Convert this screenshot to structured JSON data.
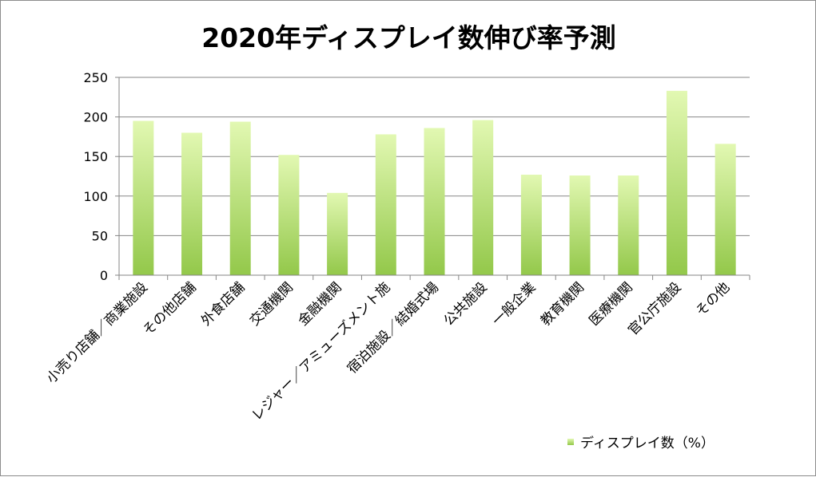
{
  "chart_data": {
    "type": "bar",
    "title": "2020年ディスプレイ数伸び率予測",
    "categories": [
      "小売り店舗／商業施設",
      "その他店舗",
      "外食店舗",
      "交通機関",
      "金融機関",
      "レジャー／アミューズメント施",
      "宿泊施設／結婚式場",
      "公共施設",
      "一般企業",
      "教育機関",
      "医療機関",
      "官公庁施設",
      "その他"
    ],
    "series": [
      {
        "name": "ディスプレイ数（%）",
        "values": [
          195,
          180,
          194,
          152,
          104,
          178,
          186,
          196,
          127,
          126,
          126,
          233,
          166
        ]
      }
    ],
    "ylim": [
      0,
      250
    ],
    "yticks": [
      0,
      50,
      100,
      150,
      200,
      250
    ],
    "grid": true,
    "legend_position": "bottom-right",
    "colors": {
      "bar_top": "#e2f8b2",
      "bar_bottom": "#93c84a",
      "grid": "#868686",
      "axis": "#868686"
    }
  }
}
